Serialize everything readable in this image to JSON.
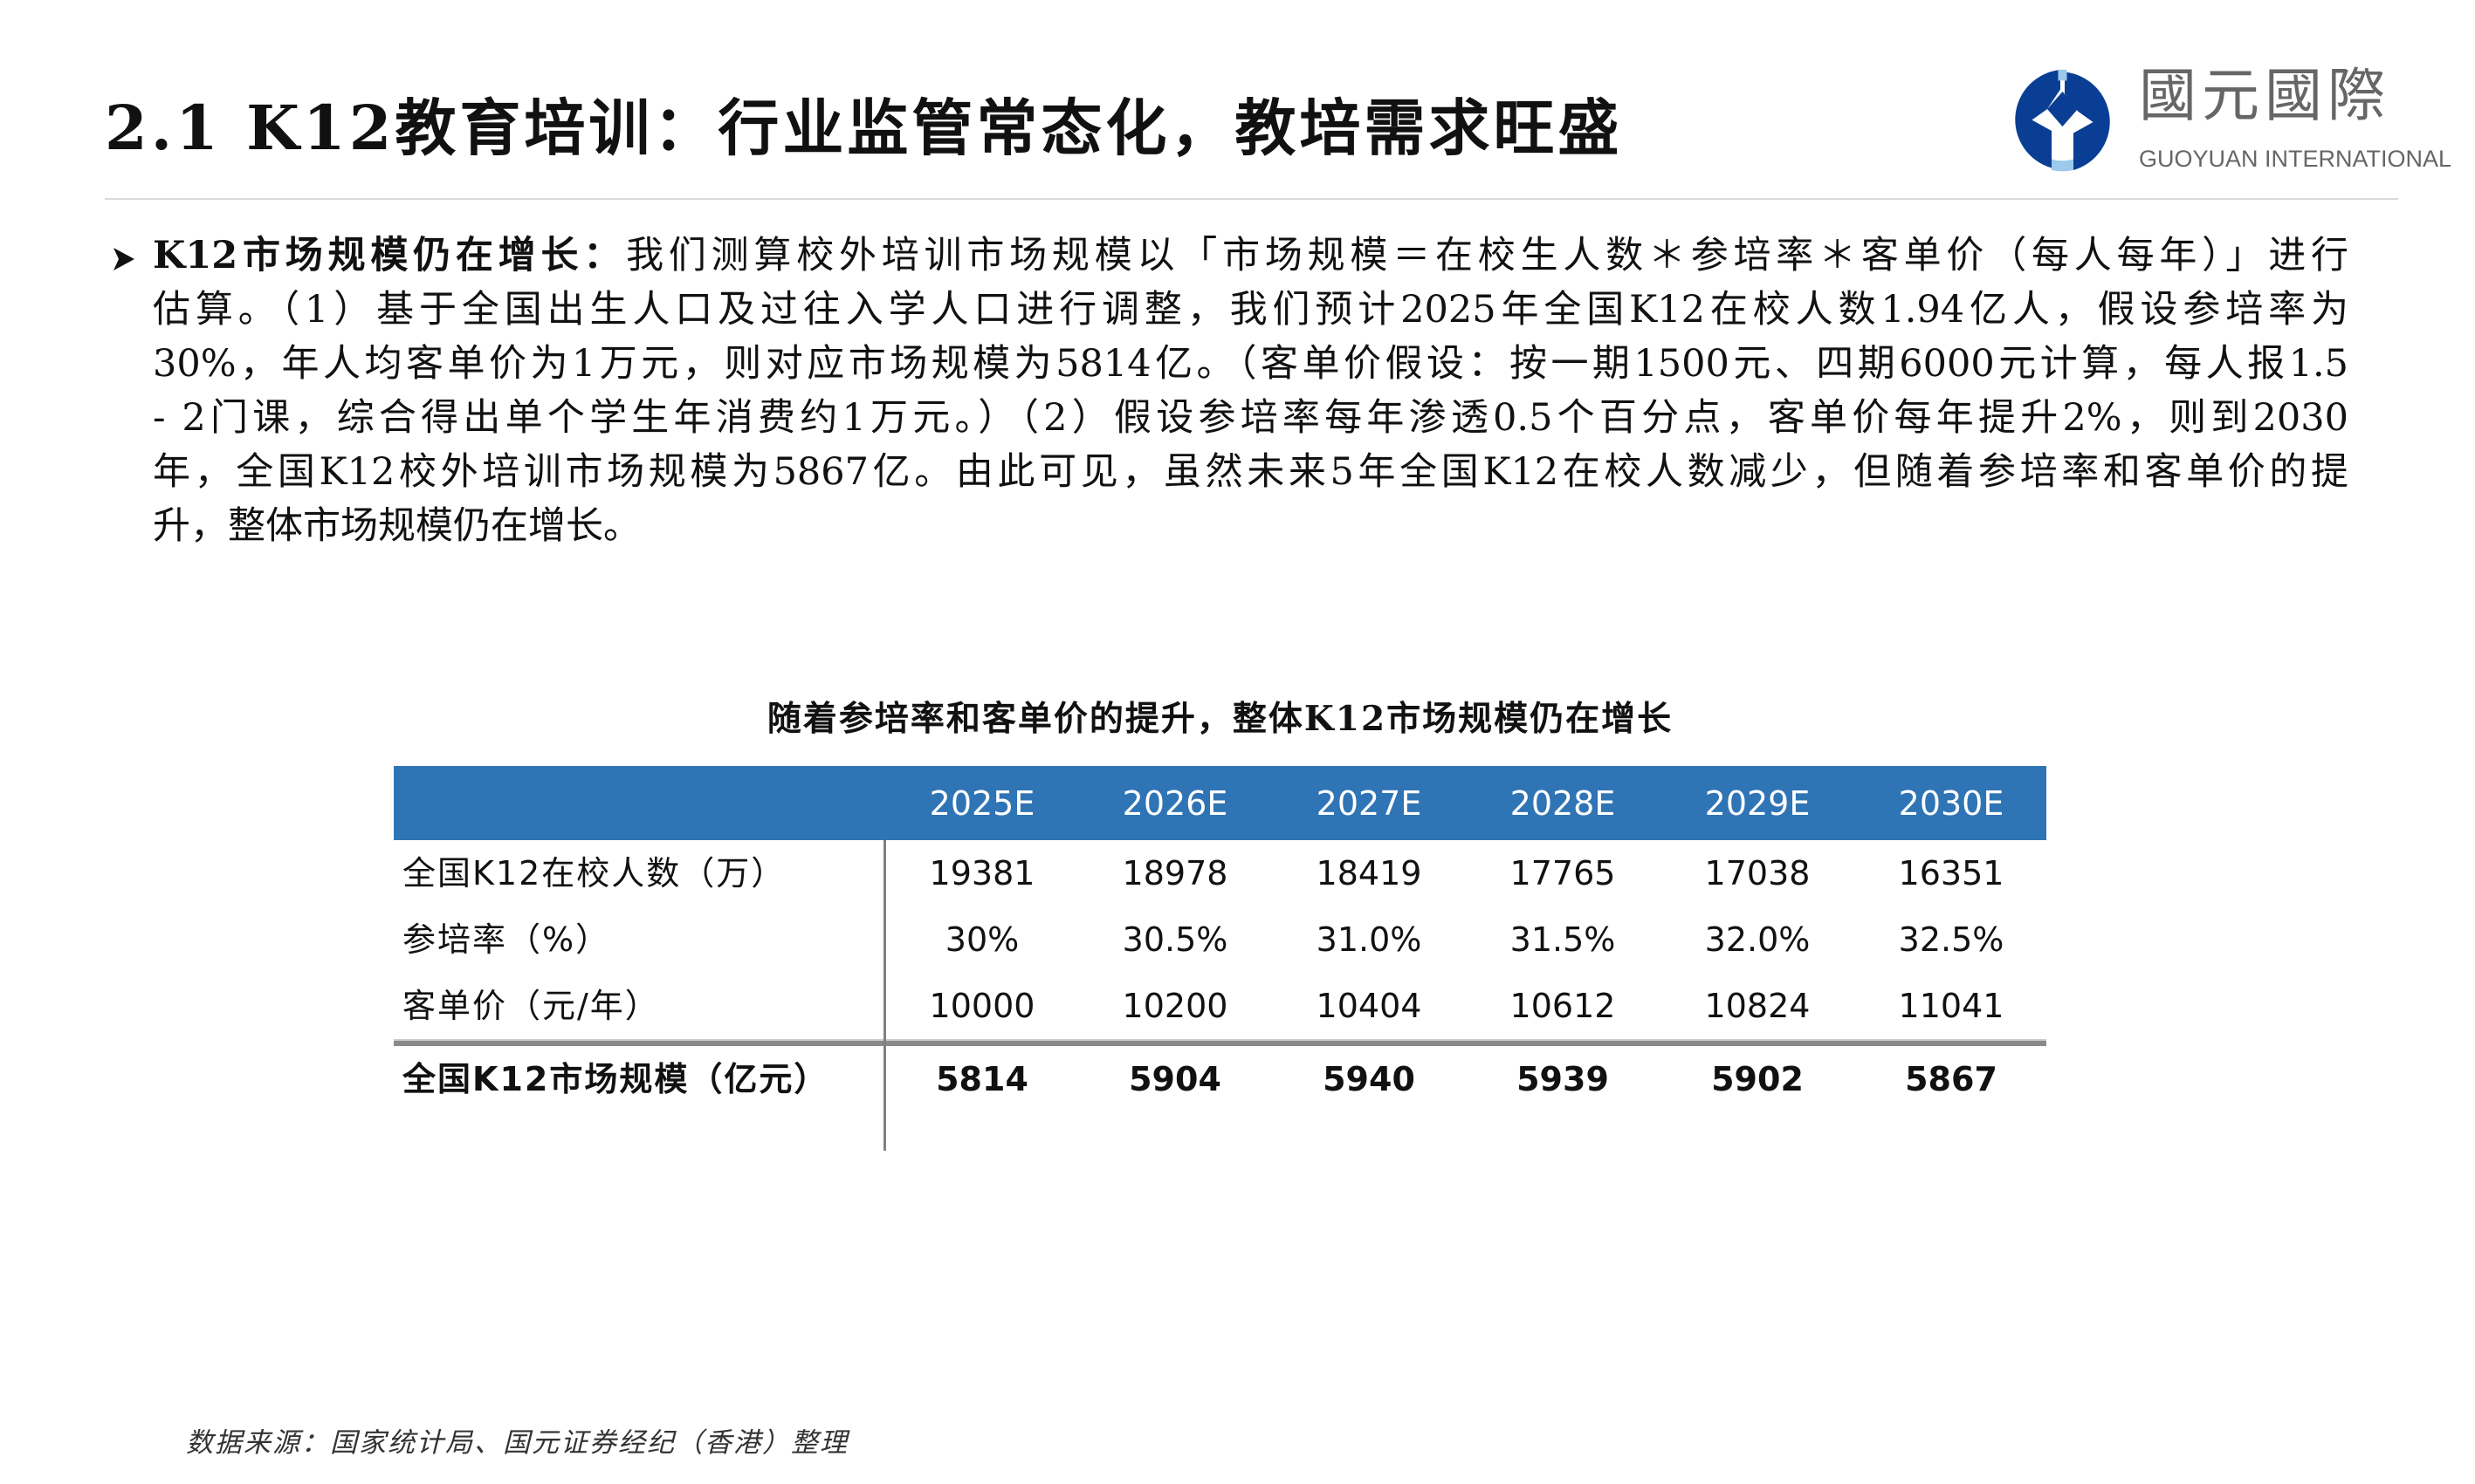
{
  "header": {
    "title": "2.1 K12教育培训：行业监管常态化，教培需求旺盛"
  },
  "logo": {
    "cn": "國元國際",
    "en": "GUOYUAN INTERNATIONAL",
    "colors": {
      "dark": "#0a3e94",
      "light": "#9cc9ec",
      "text": "#666666"
    }
  },
  "bullet": {
    "icon": "arrow-right-icon",
    "lead": "K12市场规模仍在增长：",
    "lines": [
      "我们测算校外培训市场规模以「市场规模＝在校生人数＊参培率＊客单价（每人每年）」进行",
      "估算。（1）基于全国出生人口及过往入学人口进行调整，我们预计2025年全国K12在校人数1.94亿人，假设参培率为",
      "30%，年人均客单价为1万元，则对应市场规模为5814亿。（客单价假设：按一期1500元、四期6000元计算，每人报1.5",
      "- 2门课，综合得出单个学生年消费约1万元。）（2）假设参培率每年渗透0.5个百分点，客单价每年提升2%，则到2030",
      "年，全国K12校外培训市场规模为5867亿。由此可见，虽然未来5年全国K12在校人数减少，但随着参培率和客单价的提",
      "升，整体市场规模仍在增长。"
    ]
  },
  "table": {
    "caption": "随着参培率和客单价的提升，整体K12市场规模仍在增长",
    "header_color": "#2f74b5",
    "columns": [
      "2025E",
      "2026E",
      "2027E",
      "2028E",
      "2029E",
      "2030E"
    ],
    "rows": [
      {
        "label": "全国K12在校人数（万）",
        "values": [
          "19381",
          "18978",
          "18419",
          "17765",
          "17038",
          "16351"
        ]
      },
      {
        "label": "参培率（%）",
        "values": [
          "30%",
          "30.5%",
          "31.0%",
          "31.5%",
          "32.0%",
          "32.5%"
        ]
      },
      {
        "label": "客单价（元/年）",
        "values": [
          "10000",
          "10200",
          "10404",
          "10612",
          "10824",
          "11041"
        ]
      }
    ],
    "total": {
      "label": "全国K12市场规模（亿元）",
      "values": [
        "5814",
        "5904",
        "5940",
        "5939",
        "5902",
        "5867"
      ]
    }
  },
  "footer": {
    "source": "数据来源：国家统计局、国元证券经纪（香港）整理"
  }
}
